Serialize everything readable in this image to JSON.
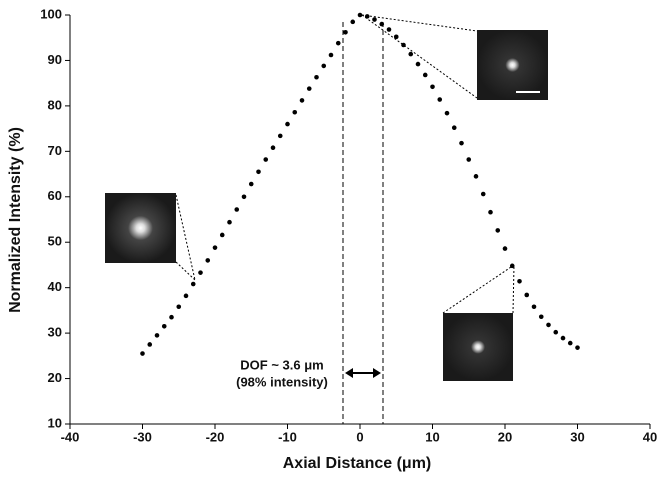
{
  "chart_data": {
    "type": "scatter",
    "x_label": "Axial Distance (μm)",
    "y_label": "Normalized Intensity (%)",
    "annotations": [
      "DOF ~ 3.6 μm",
      "(98% intensity)"
    ],
    "x": [
      -30,
      -29,
      -28,
      -27,
      -26,
      -25,
      -24,
      -23,
      -22,
      -21,
      -20,
      -19,
      -18,
      -17,
      -16,
      -15,
      -14,
      -13,
      -12,
      -11,
      -10,
      -9,
      -8,
      -7,
      -6,
      -5,
      -4,
      -3,
      -2,
      -1,
      0,
      1,
      2,
      3,
      4,
      5,
      6,
      7,
      8,
      9,
      10,
      11,
      12,
      13,
      14,
      15,
      16,
      17,
      18,
      19,
      20,
      21,
      22,
      23,
      24,
      25,
      26,
      27,
      28,
      29,
      30
    ],
    "values": [
      25.5,
      27.5,
      29.5,
      31.5,
      33.5,
      35.8,
      38.2,
      40.8,
      43.3,
      46,
      48.8,
      51.6,
      54.4,
      57.2,
      60,
      62.8,
      65.5,
      68.2,
      70.8,
      73.4,
      76,
      78.6,
      81.2,
      83.8,
      86.3,
      88.8,
      91.2,
      93.8,
      96.2,
      98.5,
      100,
      99.7,
      99,
      98,
      96.8,
      95.2,
      93.4,
      91.4,
      89.2,
      86.8,
      84.2,
      81.4,
      78.4,
      75.2,
      71.8,
      68.2,
      64.5,
      60.6,
      56.6,
      52.6,
      48.6,
      44.8,
      41.4,
      38.4,
      35.8,
      33.6,
      31.8,
      30.2,
      28.9,
      27.8,
      26.8
    ],
    "color": "#000000",
    "xlim": [
      -40,
      40
    ],
    "xticks": [
      -40,
      -30,
      -20,
      -10,
      0,
      10,
      20,
      30,
      40
    ],
    "ylim": [
      10,
      100
    ],
    "yticks": [
      10,
      20,
      30,
      40,
      50,
      60,
      70,
      80,
      90,
      100
    ]
  }
}
